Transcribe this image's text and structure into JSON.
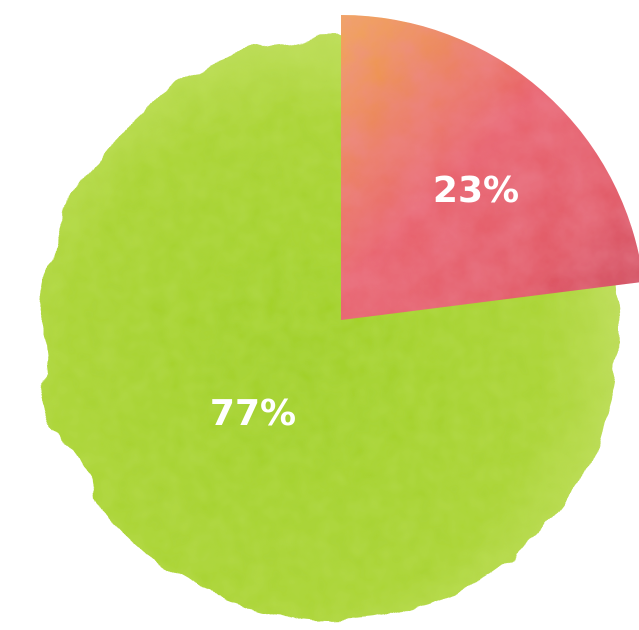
{
  "chart_data": {
    "type": "pie",
    "slices": [
      {
        "label": "77%",
        "value": 77,
        "color": "#a7d12c"
      },
      {
        "label": "23%",
        "value": 23,
        "color": "#e0605e"
      }
    ]
  }
}
